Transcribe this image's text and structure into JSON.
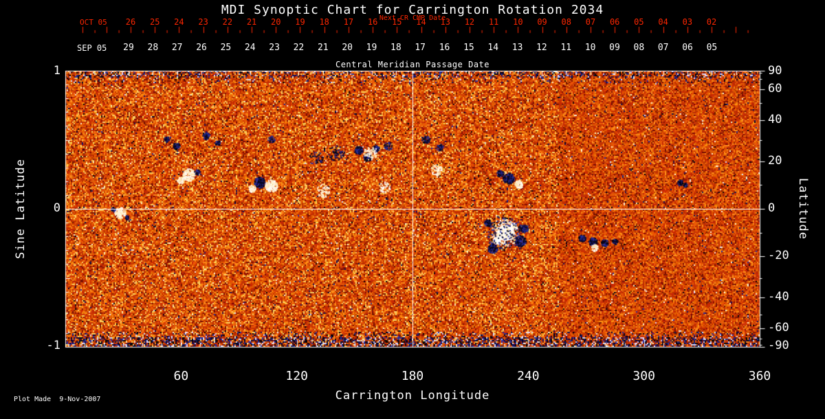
{
  "footer": {
    "plot_made": "Plot Made  9-Nov-2007"
  },
  "chart_data": {
    "type": "heatmap",
    "title": "MDI Synoptic Chart for Carrington Rotation 2034",
    "description": "Solar photospheric magnetic field synoptic map for Carrington rotation 2034; speckled orange/red magnetogram, white = positive polarity active regions, dark = negative polarity. White crosshair lines at Carrington longitude 180 and sine latitude 0.",
    "x_axis": {
      "title": "Carrington Longitude",
      "range": [
        0,
        360
      ],
      "tick_values": [
        60,
        120,
        180,
        240,
        300,
        360
      ],
      "tick_labels": [
        "60",
        "120",
        "180",
        "240",
        "300",
        "360"
      ]
    },
    "left_axis": {
      "title": "Sine Latitude",
      "range": [
        -1,
        1
      ],
      "tick_values": [
        1,
        0,
        -1
      ],
      "tick_labels": [
        "1",
        "0",
        "-1"
      ]
    },
    "right_axis": {
      "title": "Latitude",
      "range": [
        -90,
        90
      ],
      "tick_values": [
        90,
        60,
        40,
        20,
        0,
        -20,
        -40,
        -60,
        -90
      ],
      "tick_labels": [
        "90",
        "60",
        "40",
        "20",
        "0",
        "-20",
        "-40",
        "-60",
        "-90"
      ]
    },
    "top_axes": {
      "next_cr": {
        "title": "Next CR CMP Date",
        "month_label": "OCT 05",
        "days": [
          "26",
          "25",
          "24",
          "23",
          "22",
          "21",
          "20",
          "19",
          "18",
          "17",
          "16",
          "15",
          "14",
          "13",
          "12",
          "11",
          "10",
          "09",
          "08",
          "07",
          "06",
          "05",
          "04",
          "03",
          "02"
        ]
      },
      "current_cr": {
        "axis_title": "Central Meridian Passage Date",
        "month_label": "SEP 05",
        "days": [
          "29",
          "28",
          "27",
          "26",
          "25",
          "24",
          "23",
          "22",
          "21",
          "20",
          "19",
          "18",
          "17",
          "16",
          "15",
          "14",
          "13",
          "12",
          "11",
          "10",
          "09",
          "08",
          "07",
          "06",
          "05"
        ]
      }
    },
    "grid_lines": {
      "vertical_longitude": 180,
      "horizontal_sine_latitude": 0
    },
    "colors": {
      "background": "#000000",
      "axis": "#ffffff",
      "next_cr_axis": "#ff2600"
    },
    "palette": {
      "dark_red": "#7a1200",
      "red": "#c43000",
      "orange": "#e55a02",
      "bright_orange": "#ff8c18",
      "yellow": "#ffd060",
      "speck_dark": "#14145a",
      "speck_blue": "#2830a0",
      "polar_navy": "#000030",
      "white": "#ffffff"
    },
    "active_regions": [
      {
        "lon": 228.1,
        "slat": -0.174,
        "r": 12,
        "c": "w",
        "solid": true
      },
      {
        "lon": 223.8,
        "slat": -0.229,
        "r": 6,
        "c": "w",
        "solid": true
      },
      {
        "lon": 232.4,
        "slat": -0.124,
        "r": 5,
        "c": "w",
        "solid": true
      },
      {
        "lon": 228.1,
        "slat": -0.174,
        "r": 20,
        "n": 220,
        "c": "w"
      },
      {
        "lon": 236.0,
        "slat": -0.234,
        "r": 8,
        "n": 160,
        "c": "d"
      },
      {
        "lon": 221.7,
        "slat": -0.289,
        "r": 7,
        "n": 120,
        "c": "d"
      },
      {
        "lon": 238.1,
        "slat": -0.144,
        "r": 6,
        "n": 90,
        "c": "d"
      },
      {
        "lon": 228.1,
        "slat": -0.174,
        "r": 26,
        "n": 150,
        "c": "d"
      },
      {
        "lon": 219.2,
        "slat": -0.104,
        "r": 5,
        "n": 60,
        "c": "d"
      },
      {
        "lon": 229.9,
        "slat": 0.219,
        "r": 8,
        "n": 170,
        "c": "d"
      },
      {
        "lon": 235.2,
        "slat": 0.174,
        "r": 6,
        "n": 90,
        "c": "w"
      },
      {
        "lon": 225.6,
        "slat": 0.254,
        "r": 5,
        "n": 60,
        "c": "d"
      },
      {
        "lon": 100.9,
        "slat": 0.189,
        "r": 5,
        "c": "d",
        "solid": true
      },
      {
        "lon": 100.9,
        "slat": 0.189,
        "r": 8,
        "n": 150,
        "c": "d"
      },
      {
        "lon": 105.5,
        "slat": 0.154,
        "r": 5,
        "c": "w",
        "solid": true
      },
      {
        "lon": 106.9,
        "slat": 0.164,
        "r": 9,
        "n": 140,
        "c": "w"
      },
      {
        "lon": 96.9,
        "slat": 0.144,
        "r": 5,
        "n": 60,
        "c": "w"
      },
      {
        "lon": 152.2,
        "slat": 0.423,
        "r": 6,
        "n": 110,
        "c": "d"
      },
      {
        "lon": 156.8,
        "slat": 0.373,
        "r": 6,
        "n": 110,
        "c": "d"
      },
      {
        "lon": 161.1,
        "slat": 0.433,
        "r": 5,
        "n": 80,
        "c": "d"
      },
      {
        "lon": 158.3,
        "slat": 0.403,
        "r": 10,
        "n": 70,
        "c": "w"
      },
      {
        "lon": 140.8,
        "slat": 0.403,
        "r": 12,
        "n": 60,
        "c": "d"
      },
      {
        "lon": 130.1,
        "slat": 0.363,
        "r": 10,
        "n": 40,
        "c": "d"
      },
      {
        "lon": 64.2,
        "slat": 0.244,
        "r": 9,
        "n": 150,
        "c": "w"
      },
      {
        "lon": 59.9,
        "slat": 0.204,
        "r": 5,
        "n": 50,
        "c": "w"
      },
      {
        "lon": 68.4,
        "slat": 0.264,
        "r": 4,
        "n": 40,
        "c": "d"
      },
      {
        "lon": 57.7,
        "slat": 0.453,
        "r": 5,
        "n": 70,
        "c": "d"
      },
      {
        "lon": 52.7,
        "slat": 0.502,
        "r": 4,
        "n": 50,
        "c": "d"
      },
      {
        "lon": 73.1,
        "slat": 0.527,
        "r": 5,
        "n": 60,
        "c": "d"
      },
      {
        "lon": 79.1,
        "slat": 0.478,
        "r": 4,
        "n": 40,
        "c": "d"
      },
      {
        "lon": 28.5,
        "slat": -0.03,
        "r": 4,
        "c": "w",
        "solid": true
      },
      {
        "lon": 28.5,
        "slat": -0.03,
        "r": 8,
        "n": 120,
        "c": "w"
      },
      {
        "lon": 24.9,
        "slat": -0.005,
        "r": 3,
        "n": 30,
        "c": "d"
      },
      {
        "lon": 32.1,
        "slat": -0.065,
        "r": 3,
        "n": 25,
        "c": "d"
      },
      {
        "lon": 268.0,
        "slat": -0.214,
        "r": 5,
        "n": 80,
        "c": "d"
      },
      {
        "lon": 273.7,
        "slat": -0.239,
        "r": 6,
        "n": 100,
        "c": "d"
      },
      {
        "lon": 279.8,
        "slat": -0.249,
        "r": 5,
        "n": 70,
        "c": "d"
      },
      {
        "lon": 285.1,
        "slat": -0.239,
        "r": 4,
        "n": 40,
        "c": "d"
      },
      {
        "lon": 274.5,
        "slat": -0.284,
        "r": 5,
        "n": 40,
        "c": "w"
      },
      {
        "lon": 319.0,
        "slat": 0.189,
        "r": 4,
        "n": 70,
        "c": "d"
      },
      {
        "lon": 321.5,
        "slat": 0.169,
        "r": 3,
        "n": 30,
        "c": "d"
      },
      {
        "lon": 167.5,
        "slat": 0.453,
        "r": 6,
        "n": 40,
        "c": "d"
      },
      {
        "lon": 187.1,
        "slat": 0.502,
        "r": 6,
        "n": 50,
        "c": "d"
      },
      {
        "lon": 194.3,
        "slat": 0.443,
        "r": 5,
        "n": 40,
        "c": "d"
      },
      {
        "lon": 106.9,
        "slat": 0.502,
        "r": 5,
        "n": 40,
        "c": "d"
      },
      {
        "lon": 192.5,
        "slat": 0.279,
        "r": 8,
        "n": 60,
        "c": "w"
      },
      {
        "lon": 133.7,
        "slat": 0.129,
        "r": 10,
        "n": 60,
        "c": "w"
      },
      {
        "lon": 165.7,
        "slat": 0.154,
        "r": 8,
        "n": 50,
        "c": "w"
      }
    ]
  }
}
